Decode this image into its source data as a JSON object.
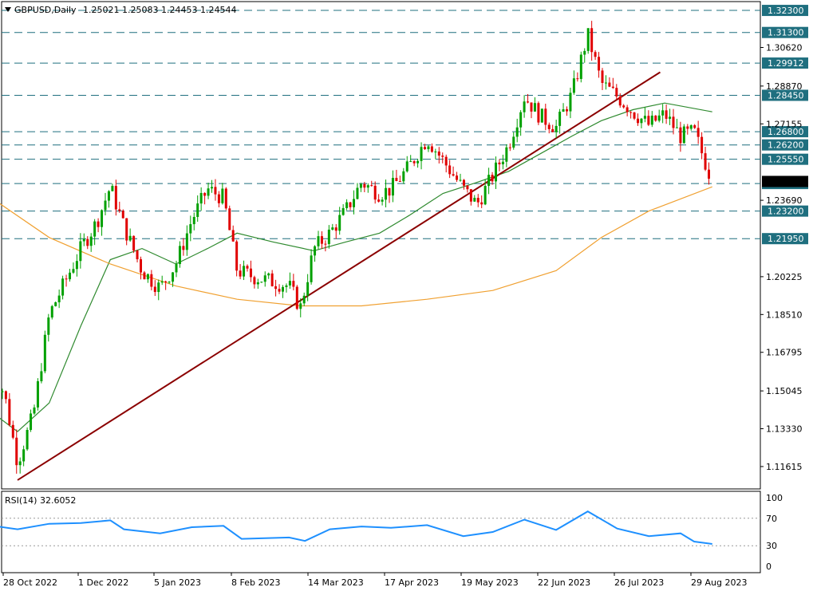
{
  "header": {
    "symbol_label": "GBPUSD,Daily",
    "ohlc_label": "1.25021 1.25083 1.24453 1.24544"
  },
  "rsi": {
    "label": "RSI(14) 32.6052",
    "ticks": [
      "100",
      "70",
      "30",
      "0"
    ],
    "levels": [
      70,
      30
    ]
  },
  "colors": {
    "bull": "#00a000",
    "bear": "#e00000",
    "ma_fast": "#2f8a2f",
    "ma_slow": "#f0a030",
    "trendline": "#8b0000",
    "level_line": "#1f6f7f",
    "level_label_bg": "#1f6f7f",
    "rsi_line": "#1e90ff",
    "current_price_bg": "#000000"
  },
  "chart_data": {
    "type": "line",
    "title": "GBPUSD,Daily",
    "ylim": [
      1.106,
      1.327
    ],
    "y_ticks": [
      "1.30620",
      "1.28870",
      "1.27155",
      "1.23690",
      "1.20225",
      "1.18510",
      "1.16795",
      "1.15045",
      "1.13330",
      "1.11615"
    ],
    "x_ticks": [
      "28 Oct 2022",
      "1 Dec 2022",
      "5 Jan 2023",
      "8 Feb 2023",
      "14 Mar 2023",
      "17 Apr 2023",
      "19 May 2023",
      "22 Jun 2023",
      "26 Jul 2023",
      "29 Aug 2023"
    ],
    "levels": [
      {
        "label": "1.32300",
        "value": 1.323
      },
      {
        "label": "1.31300",
        "value": 1.313
      },
      {
        "label": "1.29912",
        "value": 1.29912
      },
      {
        "label": "1.28450",
        "value": 1.2845
      },
      {
        "label": "1.26800",
        "value": 1.268
      },
      {
        "label": "1.26200",
        "value": 1.262
      },
      {
        "label": "1.25550",
        "value": 1.2555
      },
      {
        "label": "1.24450",
        "value": 1.2445
      },
      {
        "label": "1.23200",
        "value": 1.232
      },
      {
        "label": "1.21950",
        "value": 1.2195
      }
    ],
    "current_price": 1.24544,
    "trendline": {
      "from": {
        "date": "3 Nov 2022",
        "value": 1.11
      },
      "to": {
        "date": "14 Aug 2023",
        "value": 1.295
      }
    },
    "series": [
      {
        "name": "price_close",
        "values": [
          [
            "2022-10-21",
            1.16
          ],
          [
            "2022-10-28",
            1.15
          ],
          [
            "2022-11-03",
            1.118
          ],
          [
            "2022-11-10",
            1.14
          ],
          [
            "2022-11-17",
            1.185
          ],
          [
            "2022-11-24",
            1.2
          ],
          [
            "2022-12-01",
            1.215
          ],
          [
            "2022-12-08",
            1.227
          ],
          [
            "2022-12-14",
            1.243
          ],
          [
            "2022-12-20",
            1.225
          ],
          [
            "2022-12-28",
            1.205
          ],
          [
            "2023-01-05",
            1.197
          ],
          [
            "2023-01-12",
            1.208
          ],
          [
            "2023-01-19",
            1.228
          ],
          [
            "2023-01-26",
            1.242
          ],
          [
            "2023-02-02",
            1.238
          ],
          [
            "2023-02-08",
            1.205
          ],
          [
            "2023-02-16",
            1.202
          ],
          [
            "2023-02-24",
            1.2
          ],
          [
            "2023-03-03",
            1.198
          ],
          [
            "2023-03-08",
            1.188
          ],
          [
            "2023-03-14",
            1.215
          ],
          [
            "2023-03-21",
            1.222
          ],
          [
            "2023-03-28",
            1.232
          ],
          [
            "2023-04-04",
            1.245
          ],
          [
            "2023-04-12",
            1.24
          ],
          [
            "2023-04-17",
            1.242
          ],
          [
            "2023-04-25",
            1.252
          ],
          [
            "2023-05-03",
            1.265
          ],
          [
            "2023-05-10",
            1.255
          ],
          [
            "2023-05-19",
            1.242
          ],
          [
            "2023-05-25",
            1.235
          ],
          [
            "2023-06-01",
            1.248
          ],
          [
            "2023-06-08",
            1.262
          ],
          [
            "2023-06-15",
            1.284
          ],
          [
            "2023-06-22",
            1.275
          ],
          [
            "2023-06-29",
            1.27
          ],
          [
            "2023-07-06",
            1.285
          ],
          [
            "2023-07-13",
            1.312
          ],
          [
            "2023-07-19",
            1.29
          ],
          [
            "2023-07-26",
            1.284
          ],
          [
            "2023-08-02",
            1.277
          ],
          [
            "2023-08-09",
            1.271
          ],
          [
            "2023-08-16",
            1.276
          ],
          [
            "2023-08-23",
            1.266
          ],
          [
            "2023-08-29",
            1.268
          ],
          [
            "2023-09-06",
            1.24544
          ]
        ]
      },
      {
        "name": "ma_fast",
        "values": [
          [
            "2022-10-21",
            1.142
          ],
          [
            "2022-11-03",
            1.132
          ],
          [
            "2022-11-17",
            1.145
          ],
          [
            "2022-12-01",
            1.18
          ],
          [
            "2022-12-14",
            1.21
          ],
          [
            "2022-12-28",
            1.215
          ],
          [
            "2023-01-12",
            1.208
          ],
          [
            "2023-01-26",
            1.215
          ],
          [
            "2023-02-08",
            1.222
          ],
          [
            "2023-02-24",
            1.218
          ],
          [
            "2023-03-14",
            1.214
          ],
          [
            "2023-03-28",
            1.218
          ],
          [
            "2023-04-12",
            1.222
          ],
          [
            "2023-04-25",
            1.23
          ],
          [
            "2023-05-10",
            1.24
          ],
          [
            "2023-05-25",
            1.245
          ],
          [
            "2023-06-08",
            1.25
          ],
          [
            "2023-06-22",
            1.258
          ],
          [
            "2023-07-06",
            1.266
          ],
          [
            "2023-07-19",
            1.273
          ],
          [
            "2023-08-02",
            1.278
          ],
          [
            "2023-08-16",
            1.281
          ],
          [
            "2023-09-06",
            1.277
          ]
        ]
      },
      {
        "name": "ma_slow",
        "values": [
          [
            "2022-10-21",
            1.239
          ],
          [
            "2022-11-17",
            1.22
          ],
          [
            "2022-12-14",
            1.208
          ],
          [
            "2023-01-12",
            1.198
          ],
          [
            "2023-02-08",
            1.192
          ],
          [
            "2023-03-08",
            1.189
          ],
          [
            "2023-04-04",
            1.189
          ],
          [
            "2023-05-03",
            1.192
          ],
          [
            "2023-06-01",
            1.196
          ],
          [
            "2023-06-29",
            1.205
          ],
          [
            "2023-07-19",
            1.22
          ],
          [
            "2023-08-09",
            1.232
          ],
          [
            "2023-09-06",
            1.243
          ]
        ]
      },
      {
        "name": "rsi",
        "values": [
          [
            "2022-10-21",
            60
          ],
          [
            "2022-11-03",
            54
          ],
          [
            "2022-11-17",
            62
          ],
          [
            "2022-12-01",
            63
          ],
          [
            "2022-12-14",
            67
          ],
          [
            "2022-12-20",
            54
          ],
          [
            "2023-01-05",
            48
          ],
          [
            "2023-01-19",
            57
          ],
          [
            "2023-02-02",
            59
          ],
          [
            "2023-02-10",
            40
          ],
          [
            "2023-03-03",
            42
          ],
          [
            "2023-03-10",
            37
          ],
          [
            "2023-03-21",
            54
          ],
          [
            "2023-04-04",
            58
          ],
          [
            "2023-04-17",
            56
          ],
          [
            "2023-05-03",
            60
          ],
          [
            "2023-05-19",
            44
          ],
          [
            "2023-06-01",
            50
          ],
          [
            "2023-06-15",
            68
          ],
          [
            "2023-06-29",
            53
          ],
          [
            "2023-07-13",
            80
          ],
          [
            "2023-07-26",
            55
          ],
          [
            "2023-08-09",
            44
          ],
          [
            "2023-08-23",
            48
          ],
          [
            "2023-08-29",
            36
          ],
          [
            "2023-09-06",
            32.6
          ]
        ]
      }
    ]
  }
}
